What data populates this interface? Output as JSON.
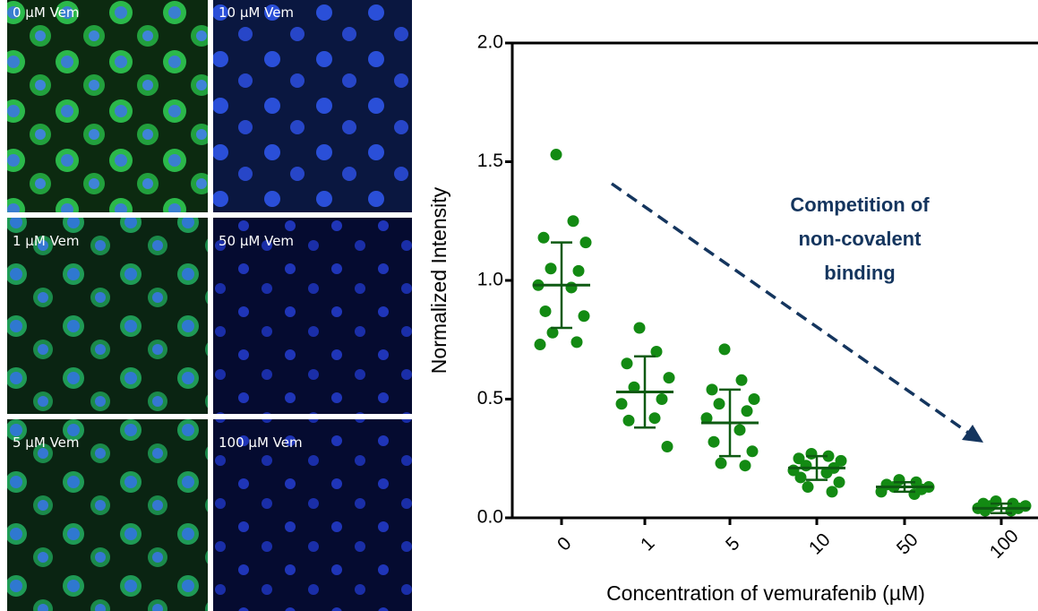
{
  "panels": [
    {
      "label": "0 µM Vem"
    },
    {
      "label": "10 µM Vem"
    },
    {
      "label": "1 µM Vem"
    },
    {
      "label": "50 µM Vem"
    },
    {
      "label": "5 µM Vem"
    },
    {
      "label": "100 µM Vem"
    }
  ],
  "chart_data": {
    "type": "dot-plot",
    "y_label": "Normalized Intensity",
    "x_label": "Concentration of vemurafenib (µM)",
    "annotation": [
      "Competition of",
      "non-covalent",
      "binding"
    ],
    "categories": [
      "0",
      "1",
      "5",
      "10",
      "50",
      "100"
    ],
    "color": "#138a13",
    "line_color": "#0e5a12",
    "annotation_color": "#14355e",
    "ylim": [
      0,
      2
    ],
    "yticks": [
      {
        "value": 0,
        "label": "0.0"
      },
      {
        "value": 0.5,
        "label": "0.5"
      },
      {
        "value": 1,
        "label": "1.0"
      },
      {
        "value": 1.5,
        "label": "1.5"
      },
      {
        "value": 2,
        "label": "2.0"
      }
    ],
    "groups": [
      {
        "points": [
          1.53,
          1.25,
          1.18,
          1.16,
          1.05,
          1.04,
          0.98,
          0.97,
          0.87,
          0.85,
          0.78,
          0.74,
          0.73
        ],
        "mean": 0.98,
        "sd": 0.18
      },
      {
        "points": [
          0.8,
          0.7,
          0.65,
          0.59,
          0.55,
          0.5,
          0.48,
          0.42,
          0.41,
          0.3
        ],
        "mean": 0.53,
        "sd": 0.15
      },
      {
        "points": [
          0.71,
          0.58,
          0.54,
          0.5,
          0.48,
          0.45,
          0.42,
          0.37,
          0.32,
          0.28,
          0.23,
          0.22
        ],
        "mean": 0.4,
        "sd": 0.14
      },
      {
        "points": [
          0.27,
          0.26,
          0.25,
          0.24,
          0.22,
          0.21,
          0.2,
          0.19,
          0.17,
          0.15,
          0.13,
          0.11
        ],
        "mean": 0.21,
        "sd": 0.05
      },
      {
        "points": [
          0.16,
          0.15,
          0.14,
          0.13,
          0.13,
          0.12,
          0.11,
          0.1
        ],
        "mean": 0.13,
        "sd": 0.02
      },
      {
        "points": [
          0.07,
          0.06,
          0.06,
          0.05,
          0.05,
          0.04,
          0.04,
          0.03,
          0.03
        ],
        "mean": 0.04,
        "sd": 0.02
      }
    ]
  }
}
